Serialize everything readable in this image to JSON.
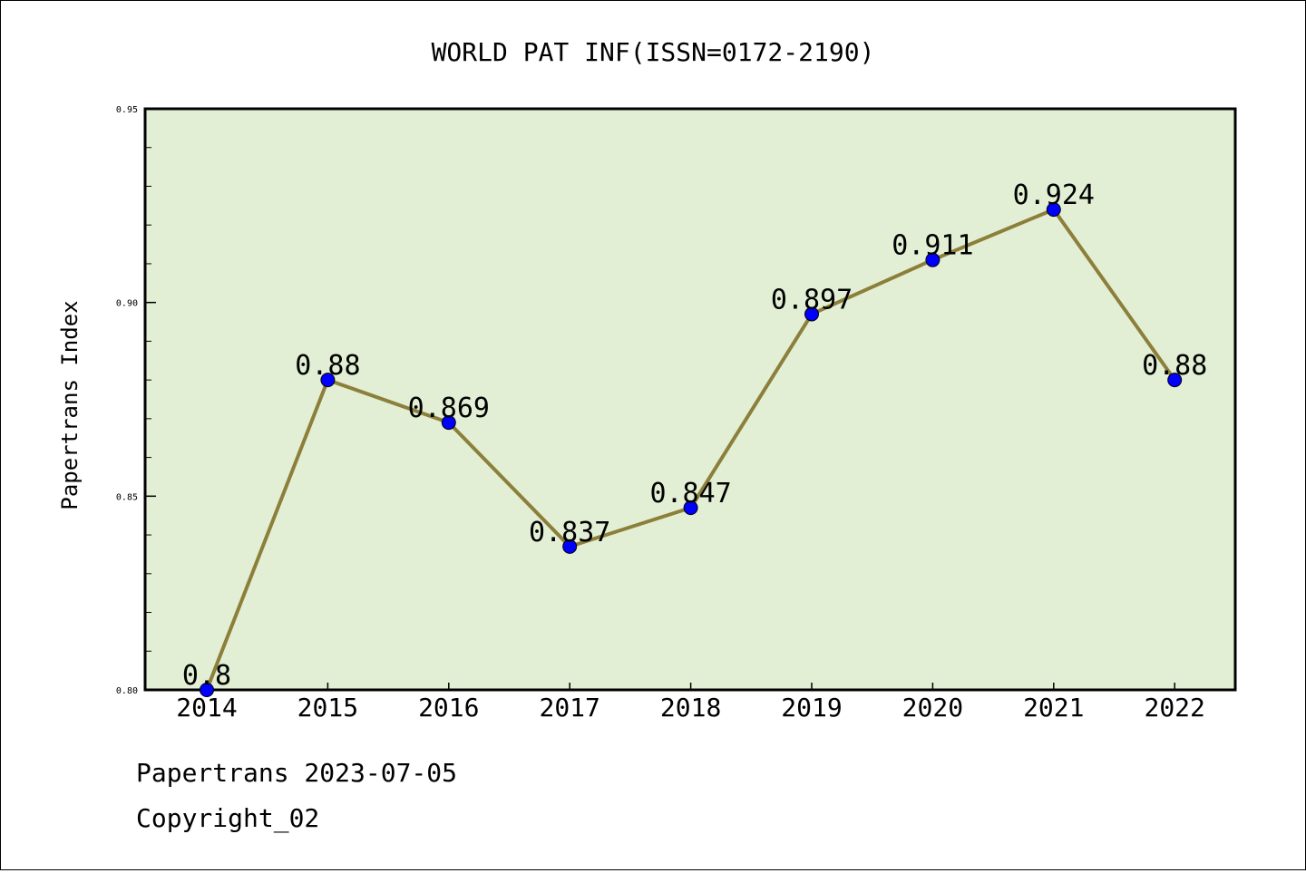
{
  "chart_data": {
    "type": "line",
    "title": "WORLD PAT INF(ISSN=0172-2190)",
    "xlabel": "",
    "ylabel": "Papertrans Index",
    "categories": [
      "2014",
      "2015",
      "2016",
      "2017",
      "2018",
      "2019",
      "2020",
      "2021",
      "2022"
    ],
    "values": [
      0.8,
      0.88,
      0.869,
      0.837,
      0.847,
      0.897,
      0.911,
      0.924,
      0.88
    ],
    "data_labels": [
      "0.8",
      "0.88",
      "0.869",
      "0.837",
      "0.847",
      "0.897",
      "0.911",
      "0.924",
      "0.88"
    ],
    "ylim": [
      0.8,
      0.95
    ],
    "yticks": [
      0.8,
      0.85,
      0.9,
      0.95
    ],
    "ytick_labels": [
      "0.80",
      "0.85",
      "0.90",
      "0.95"
    ],
    "grid": false,
    "legend": "none",
    "colors": {
      "plot_background": "#e2efd5",
      "line": "#8c7f3a",
      "marker": "#0000ff"
    }
  },
  "footer": {
    "line1": "Papertrans 2023-07-05",
    "line2": "Copyright_02"
  }
}
